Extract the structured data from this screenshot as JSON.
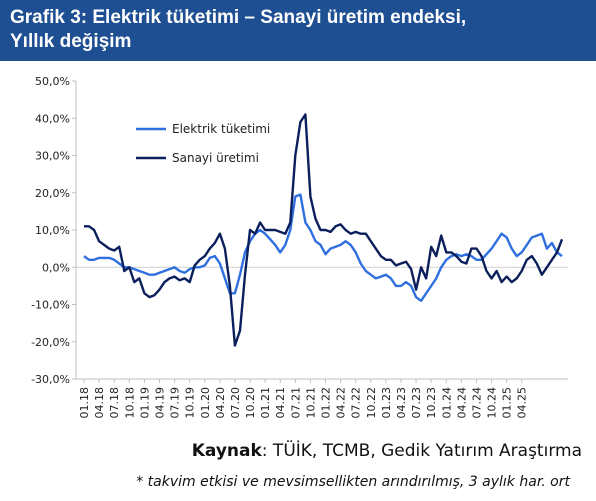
{
  "header": {
    "title_line1": "Grafik 3: Elektrik tüketimi – Sanayi üretim endeksi,",
    "title_line2": "Yıllık değişim"
  },
  "footer": {
    "source_label": "Kaynak",
    "source_text": ": TÜİK, TCMB, Gedik Yatırım Araştırma",
    "note": "* takvim etkisi ve mevsimsellikten arındırılmış, 3 aylık har. ort"
  },
  "colors": {
    "header_bg": "#1f4f93",
    "elektrik": "#2f6fe0",
    "sanayi": "#0b1f5c"
  },
  "chart_data": {
    "type": "line",
    "title": "",
    "xlabel": "",
    "ylabel": "",
    "ylim": [
      -30,
      50
    ],
    "y_ticks": [
      -30,
      -20,
      -10,
      0,
      10,
      20,
      30,
      40,
      50
    ],
    "y_tick_labels": [
      "-30,0%",
      "-20,0%",
      "-10,0%",
      "0,0%",
      "10,0%",
      "20,0%",
      "30,0%",
      "40,0%",
      "50,0%"
    ],
    "x_tick_labels": [
      "01.18",
      "04.18",
      "07.18",
      "10.18",
      "01.19",
      "04.19",
      "07.19",
      "10.19",
      "01.20",
      "04.20",
      "07.20",
      "10.20",
      "01.21",
      "04.21",
      "07.21",
      "10.21",
      "01.22",
      "04.22",
      "07.22",
      "10.22",
      "01.23",
      "04.23",
      "07.23",
      "10.23",
      "01.24",
      "04.24",
      "07.24",
      "10.24",
      "01.25",
      "04.25"
    ],
    "x_start": "2018-01",
    "x_end": "2025-06",
    "grid": false,
    "legend_position": "top-left",
    "series": [
      {
        "name": "Elektrik tüketimi",
        "values": [
          3,
          2,
          2,
          2.5,
          2.5,
          2.5,
          2,
          1,
          0,
          0,
          -0.5,
          -1,
          -1.5,
          -2,
          -2,
          -1.5,
          -1,
          -0.5,
          0,
          -1,
          -1.5,
          -0.5,
          0,
          0,
          0.5,
          2.5,
          3,
          1,
          -3,
          -7,
          -7,
          -2,
          4,
          7,
          9,
          10,
          9,
          7.5,
          6,
          4,
          6,
          10,
          19,
          19.5,
          12,
          10,
          7,
          6,
          3.5,
          5,
          5.5,
          6,
          7,
          6,
          4,
          1,
          -1,
          -2,
          -3,
          -2.5,
          -2,
          -3,
          -5,
          -5,
          -4,
          -5,
          -8,
          -9,
          -7,
          -5,
          -3,
          0,
          2,
          3,
          3.5,
          3,
          3.5,
          3,
          2,
          2,
          3.5,
          5,
          7,
          9,
          8,
          5,
          3,
          4,
          6,
          8,
          8.5,
          9,
          5,
          6.5,
          4,
          3
        ]
      },
      {
        "name": "Sanayi üretimi",
        "values": [
          11,
          11,
          10,
          7,
          6,
          5,
          4.5,
          5.5,
          -1,
          0,
          -4,
          -3,
          -7,
          -8,
          -7.5,
          -6,
          -4,
          -3,
          -2.5,
          -3.5,
          -3,
          -4,
          0.5,
          2,
          3,
          5,
          6.5,
          9,
          5,
          -5,
          -21,
          -17,
          -2,
          10,
          9,
          12,
          10,
          10,
          10,
          9.5,
          9,
          12,
          30,
          39,
          41,
          19,
          13,
          10,
          10,
          9.5,
          11,
          11.5,
          10,
          9,
          9.5,
          9,
          9,
          7,
          5,
          3,
          2,
          2,
          0.5,
          1,
          1.5,
          -0.5,
          -6,
          0,
          -3,
          5.5,
          3,
          8.5,
          4,
          4,
          3,
          1.5,
          1,
          5,
          5,
          3,
          -1,
          -3,
          -1,
          -4,
          -2.5,
          -4,
          -3,
          -1,
          2,
          3,
          1,
          -2,
          0,
          2,
          4,
          7.5
        ]
      }
    ]
  }
}
